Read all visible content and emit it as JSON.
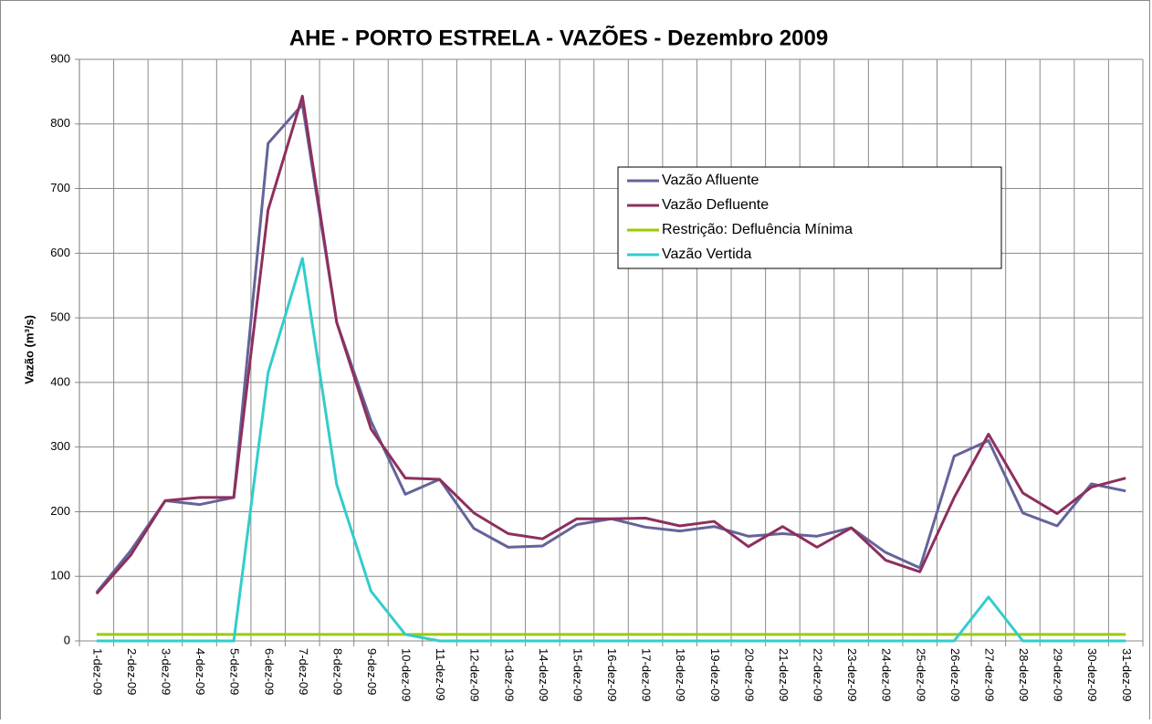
{
  "chart_data": {
    "type": "line",
    "title": "AHE - PORTO ESTRELA - VAZÕES - Dezembro 2009",
    "y_label": "Vazão (m³/s)",
    "categories": [
      "1-dez-09",
      "2-dez-09",
      "3-dez-09",
      "4-dez-09",
      "5-dez-09",
      "6-dez-09",
      "7-dez-09",
      "8-dez-09",
      "9-dez-09",
      "10-dez-09",
      "11-dez-09",
      "12-dez-09",
      "13-dez-09",
      "14-dez-09",
      "15-dez-09",
      "16-dez-09",
      "17-dez-09",
      "18-dez-09",
      "19-dez-09",
      "20-dez-09",
      "21-dez-09",
      "22-dez-09",
      "23-dez-09",
      "24-dez-09",
      "25-dez-09",
      "26-dez-09",
      "27-dez-09",
      "28-dez-09",
      "29-dez-09",
      "30-dez-09",
      "31-dez-09"
    ],
    "series": [
      {
        "name": "Vazão Afluente",
        "color": "#64649a",
        "values": [
          75,
          140,
          217,
          211,
          222,
          770,
          830,
          493,
          340,
          227,
          250,
          174,
          145,
          147,
          180,
          189,
          176,
          170,
          177,
          162,
          166,
          162,
          175,
          137,
          113,
          286,
          310,
          198,
          178,
          243,
          232
        ]
      },
      {
        "name": "Vazão Defluente",
        "color": "#8e2f5e",
        "values": [
          73,
          133,
          217,
          222,
          222,
          667,
          843,
          493,
          328,
          252,
          250,
          198,
          166,
          158,
          189,
          189,
          190,
          178,
          185,
          146,
          177,
          145,
          175,
          125,
          107,
          222,
          320,
          229,
          197,
          238,
          252
        ]
      },
      {
        "name": "Restrição: Defluência Mínima",
        "color": "#99cc00",
        "values": [
          10,
          10,
          10,
          10,
          10,
          10,
          10,
          10,
          10,
          10,
          10,
          10,
          10,
          10,
          10,
          10,
          10,
          10,
          10,
          10,
          10,
          10,
          10,
          10,
          10,
          10,
          10,
          10,
          10,
          10,
          10
        ]
      },
      {
        "name": "Vazão Vertida",
        "color": "#33cccc",
        "values": [
          0,
          0,
          0,
          0,
          0,
          415,
          592,
          242,
          77,
          10,
          0,
          0,
          0,
          0,
          0,
          0,
          0,
          0,
          0,
          0,
          0,
          0,
          0,
          0,
          0,
          0,
          68,
          0,
          0,
          0,
          0
        ]
      }
    ],
    "ylim": [
      0,
      900
    ],
    "yticks": [
      0,
      100,
      200,
      300,
      400,
      500,
      600,
      700,
      800,
      900
    ],
    "grid": true
  }
}
